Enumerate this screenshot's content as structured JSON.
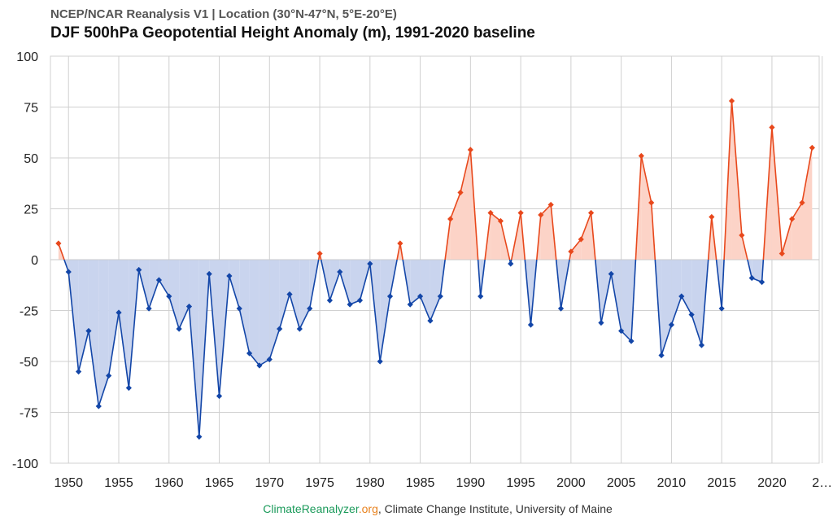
{
  "chart_data": {
    "type": "line",
    "subtitle": "NCEP/NCAR Reanalysis V1 | Location (30°N-47°N, 5°E-20°E)",
    "title": "DJF 500hPa Geopotential Height Anomaly (m), 1991-2020 baseline",
    "xlabel": "",
    "ylabel": "",
    "ylim": [
      -100,
      100
    ],
    "xlim": [
      1948.2,
      2024.7
    ],
    "yticks": [
      100,
      75,
      50,
      25,
      0,
      -25,
      -50,
      -75,
      -100
    ],
    "xticks": [
      "1950",
      "1955",
      "1960",
      "1965",
      "1970",
      "1975",
      "1980",
      "1985",
      "1990",
      "1995",
      "2000",
      "2005",
      "2010",
      "2015",
      "2020",
      "2…"
    ],
    "grid": true,
    "legend": "none",
    "colors": {
      "positive_line": "#e8481c",
      "positive_fill": "#fcd3c7",
      "negative_line": "#1346a8",
      "negative_fill": "#c9d4ee",
      "grid": "#d0d0d0"
    },
    "x": [
      1949,
      1950,
      1951,
      1952,
      1953,
      1954,
      1955,
      1956,
      1957,
      1958,
      1959,
      1960,
      1961,
      1962,
      1963,
      1964,
      1965,
      1966,
      1967,
      1968,
      1969,
      1970,
      1971,
      1972,
      1973,
      1974,
      1975,
      1976,
      1977,
      1978,
      1979,
      1980,
      1981,
      1982,
      1983,
      1984,
      1985,
      1986,
      1987,
      1988,
      1989,
      1990,
      1991,
      1992,
      1993,
      1994,
      1995,
      1996,
      1997,
      1998,
      1999,
      2000,
      2001,
      2002,
      2003,
      2004,
      2005,
      2006,
      2007,
      2008,
      2009,
      2010,
      2011,
      2012,
      2013,
      2014,
      2015,
      2016,
      2017,
      2018,
      2019,
      2020,
      2021,
      2022,
      2023,
      2024
    ],
    "series": [
      {
        "values": [
          8,
          -6,
          -55,
          -35,
          -72,
          -57,
          -26,
          -63,
          -5,
          -24,
          -10,
          -18,
          -34,
          -23,
          -87,
          -7,
          -67,
          -8,
          -24,
          -46,
          -52,
          -49,
          -34,
          -17,
          -34,
          -24,
          3,
          -20,
          -6,
          -22,
          -20,
          -2,
          -50,
          -18,
          8,
          -22,
          -18,
          -30,
          -18,
          20,
          33,
          54,
          -18,
          23,
          19,
          -2,
          23,
          -32,
          22,
          27,
          -24,
          4,
          10,
          23,
          -31,
          -7,
          -35,
          -40,
          51,
          28,
          -47,
          -32,
          -18,
          -27,
          -42,
          21,
          -24,
          78,
          12,
          -9,
          -11,
          65,
          3,
          20,
          28,
          55
        ]
      }
    ]
  },
  "footer": {
    "site": "ClimateReanalyzer",
    "tld": ".org",
    "rest": ", Climate Change Institute, University of Maine"
  }
}
